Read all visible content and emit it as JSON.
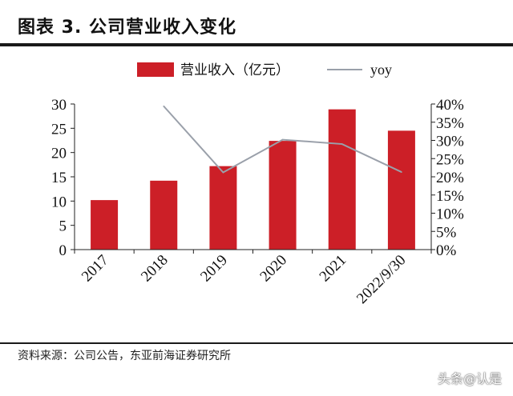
{
  "title": "图表 3.   公司营业收入变化",
  "source": "资料来源：公司公告，东亚前海证券研究所",
  "watermark": "头条@认是",
  "colors": {
    "bar": "#cc1f27",
    "line": "#9aa0aa",
    "axis": "#222222",
    "text": "#111111"
  },
  "chart_data": {
    "type": "bar",
    "categories": [
      "2017",
      "2018",
      "2019",
      "2020",
      "2021",
      "2022/9/30"
    ],
    "series": [
      {
        "name": "营业收入（亿元）",
        "type": "bar",
        "axis": "left",
        "values": [
          10.2,
          14.2,
          17.2,
          22.4,
          28.9,
          24.5
        ]
      },
      {
        "name": "yoy",
        "type": "line",
        "axis": "right",
        "values": [
          null,
          0.394,
          0.212,
          0.302,
          0.29,
          0.213
        ]
      }
    ],
    "y_left": {
      "min": 0,
      "max": 30,
      "ticks": [
        "0",
        "5",
        "10",
        "15",
        "20",
        "25",
        "30"
      ],
      "tick_values": [
        0,
        5,
        10,
        15,
        20,
        25,
        30
      ]
    },
    "y_right": {
      "min": 0,
      "max": 0.4,
      "ticks": [
        "0%",
        "5%",
        "10%",
        "15%",
        "20%",
        "25%",
        "30%",
        "35%",
        "40%"
      ],
      "tick_values": [
        0,
        0.05,
        0.1,
        0.15,
        0.2,
        0.25,
        0.3,
        0.35,
        0.4
      ]
    },
    "grid": false,
    "legend_position": "top"
  }
}
